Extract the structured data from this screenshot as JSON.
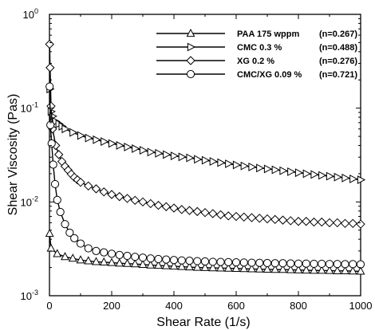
{
  "chart_data": {
    "type": "line",
    "xlabel": "Shear Rate (1/s)",
    "ylabel": "Shear Viscosity (Pas)",
    "xlim": [
      0,
      1000
    ],
    "ylim": [
      0.001,
      1
    ],
    "yscale": "log",
    "grid": false,
    "legend_position": "top-right",
    "x_ticks": [
      0,
      200,
      400,
      600,
      800,
      1000
    ],
    "x_tick_labels": [
      "0",
      "200",
      "400",
      "600",
      "800",
      "1000"
    ],
    "y_ticks": [
      0.001,
      0.01,
      0.1,
      1
    ],
    "y_tick_labels": [
      {
        "base": "10",
        "exp": "-3"
      },
      {
        "base": "10",
        "exp": "-2"
      },
      {
        "base": "10",
        "exp": "-1"
      },
      {
        "base": "10",
        "exp": "0"
      }
    ],
    "series": [
      {
        "name": "PAA 175 wppm",
        "n_label": "(n=0.267)",
        "marker": "triangle-up",
        "x": [
          0.5,
          5,
          25,
          50,
          75,
          100,
          125,
          150,
          175,
          200,
          225,
          250,
          275,
          300,
          325,
          350,
          375,
          400,
          425,
          450,
          475,
          500,
          525,
          550,
          575,
          600,
          625,
          650,
          675,
          700,
          725,
          750,
          775,
          800,
          825,
          850,
          875,
          900,
          925,
          950,
          975,
          1000
        ],
        "y": [
          0.0046,
          0.0032,
          0.0028,
          0.0026,
          0.0025,
          0.0024,
          0.00235,
          0.0023,
          0.00228,
          0.00225,
          0.00222,
          0.0022,
          0.00218,
          0.00215,
          0.00212,
          0.0021,
          0.00208,
          0.00206,
          0.00204,
          0.00202,
          0.002,
          0.00199,
          0.00198,
          0.00197,
          0.00196,
          0.00195,
          0.00194,
          0.00193,
          0.00192,
          0.00191,
          0.0019,
          0.0019,
          0.00189,
          0.00188,
          0.00187,
          0.00186,
          0.00186,
          0.00185,
          0.00184,
          0.00184,
          0.00183,
          0.00182
        ]
      },
      {
        "name": "CMC 0.3 %",
        "n_label": "(n=0.488)",
        "marker": "triangle-right",
        "x": [
          1,
          5,
          10,
          20,
          30,
          40,
          50,
          75,
          100,
          125,
          150,
          175,
          200,
          225,
          250,
          275,
          300,
          325,
          350,
          375,
          400,
          425,
          450,
          475,
          500,
          525,
          550,
          575,
          600,
          625,
          650,
          675,
          700,
          725,
          750,
          775,
          800,
          825,
          850,
          875,
          900,
          925,
          950,
          975,
          1000
        ],
        "y": [
          0.16,
          0.092,
          0.082,
          0.072,
          0.068,
          0.064,
          0.06,
          0.055,
          0.051,
          0.048,
          0.046,
          0.044,
          0.042,
          0.04,
          0.0385,
          0.037,
          0.0355,
          0.034,
          0.033,
          0.032,
          0.031,
          0.0302,
          0.0295,
          0.0285,
          0.0278,
          0.027,
          0.0262,
          0.0255,
          0.0248,
          0.0242,
          0.0236,
          0.023,
          0.0225,
          0.022,
          0.0215,
          0.021,
          0.0205,
          0.02,
          0.0196,
          0.0192,
          0.0188,
          0.0184,
          0.018,
          0.0176,
          0.0172
        ]
      },
      {
        "name": "XG 0.2 %",
        "n_label": "(n=0.276)",
        "marker": "diamond",
        "x": [
          0.5,
          2,
          5,
          10,
          20,
          30,
          40,
          50,
          60,
          70,
          80,
          90,
          100,
          125,
          150,
          175,
          200,
          225,
          250,
          275,
          300,
          325,
          350,
          375,
          400,
          425,
          450,
          475,
          500,
          525,
          550,
          575,
          600,
          625,
          650,
          675,
          700,
          725,
          750,
          775,
          800,
          825,
          850,
          875,
          900,
          925,
          950,
          975,
          1000
        ],
        "y": [
          0.48,
          0.27,
          0.105,
          0.06,
          0.04,
          0.032,
          0.027,
          0.024,
          0.0218,
          0.0198,
          0.0183,
          0.0172,
          0.0162,
          0.0148,
          0.0138,
          0.0128,
          0.012,
          0.0114,
          0.0109,
          0.0104,
          0.01,
          0.0096,
          0.0092,
          0.0089,
          0.0086,
          0.0083,
          0.0081,
          0.0079,
          0.0077,
          0.0075,
          0.0073,
          0.0071,
          0.007,
          0.0069,
          0.0068,
          0.0067,
          0.0066,
          0.0065,
          0.0064,
          0.0063,
          0.0062,
          0.0062,
          0.0061,
          0.0061,
          0.006,
          0.006,
          0.0059,
          0.0059,
          0.0058
        ]
      },
      {
        "name": "CMC/XG 0.09 %",
        "n_label": "(n=0.721)",
        "marker": "circle",
        "x": [
          0.5,
          3,
          7,
          12,
          18,
          25,
          35,
          50,
          65,
          80,
          100,
          125,
          150,
          175,
          200,
          225,
          250,
          275,
          300,
          325,
          350,
          375,
          400,
          425,
          450,
          475,
          500,
          525,
          550,
          575,
          600,
          625,
          650,
          675,
          700,
          725,
          750,
          775,
          800,
          825,
          850,
          875,
          900,
          925,
          950,
          975,
          1000
        ],
        "y": [
          0.17,
          0.066,
          0.042,
          0.025,
          0.0155,
          0.0105,
          0.0078,
          0.0058,
          0.0047,
          0.0041,
          0.0036,
          0.0032,
          0.003,
          0.0029,
          0.0028,
          0.00272,
          0.00266,
          0.0026,
          0.00255,
          0.0025,
          0.00246,
          0.00243,
          0.0024,
          0.00238,
          0.00236,
          0.00234,
          0.00232,
          0.0023,
          0.00229,
          0.00228,
          0.00227,
          0.00226,
          0.00225,
          0.00224,
          0.00223,
          0.00222,
          0.00222,
          0.00221,
          0.0022,
          0.0022,
          0.00219,
          0.00219,
          0.00218,
          0.00218,
          0.00217,
          0.00217,
          0.00216
        ]
      }
    ]
  }
}
